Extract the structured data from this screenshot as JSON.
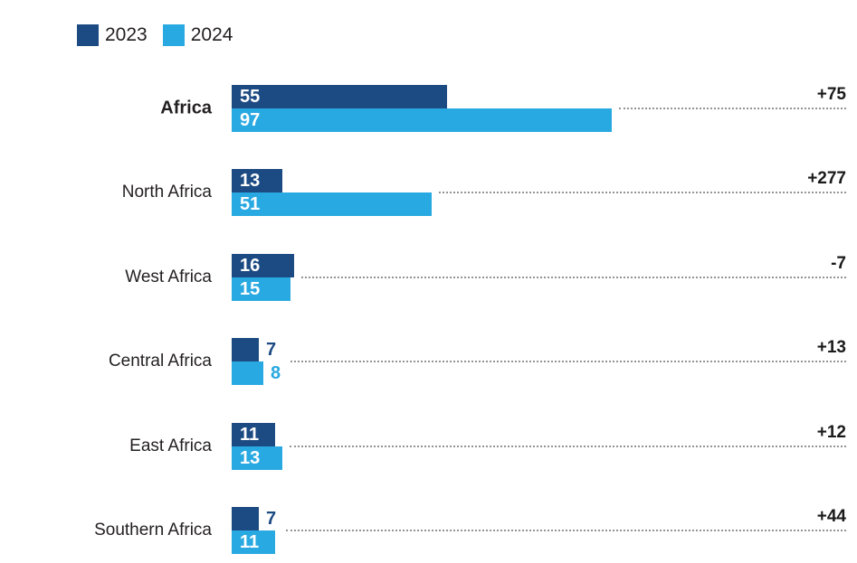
{
  "legend": {
    "items": [
      {
        "label": "2023",
        "color": "#1c4a82"
      },
      {
        "label": "2024",
        "color": "#29a9e1"
      }
    ]
  },
  "chart_data": {
    "type": "bar",
    "orientation": "horizontal",
    "title": "",
    "categories": [
      "Africa",
      "North Africa",
      "West Africa",
      "Central Africa",
      "East Africa",
      "Southern Africa"
    ],
    "series": [
      {
        "name": "2023",
        "color": "#1c4a82",
        "values": [
          55,
          13,
          16,
          7,
          11,
          7
        ]
      },
      {
        "name": "2024",
        "color": "#29a9e1",
        "values": [
          97,
          51,
          15,
          8,
          13,
          11
        ]
      }
    ],
    "change_labels": [
      "+75",
      "+277",
      "-7",
      "+13",
      "+12",
      "+44"
    ],
    "emphasized_categories": [
      "Africa"
    ],
    "xlim": [
      0,
      100
    ],
    "grid": false,
    "legend_position": "top-left",
    "value_labels": "on bars (white inside when bar long enough, colored outside otherwise)",
    "leader_lines": "gray dotted lines from bar end to right-aligned change labels"
  }
}
